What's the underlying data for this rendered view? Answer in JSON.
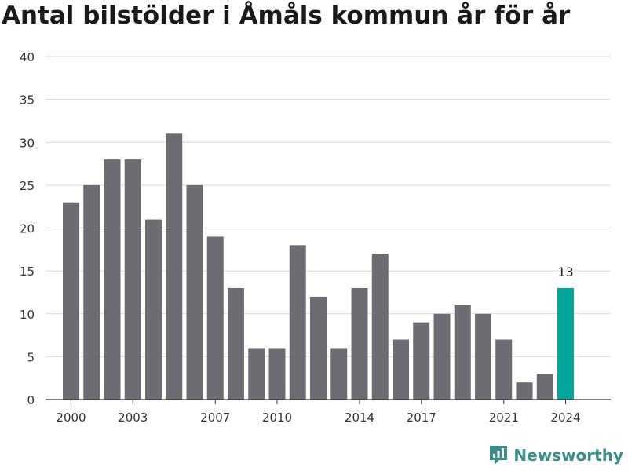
{
  "title": "Antal bilstölder i Åmåls kommun år för år",
  "brand": "Newsworthy",
  "colors": {
    "bar": "#6d6c72",
    "highlight": "#00a59b",
    "grid": "#d9d9d9",
    "text": "#333333",
    "brand": "#3a8f8c"
  },
  "chart_data": {
    "type": "bar",
    "title": "Antal bilstölder i Åmåls kommun år för år",
    "categories": [
      "2000",
      "2001",
      "2002",
      "2003",
      "2004",
      "2005",
      "2006",
      "2007",
      "2008",
      "2009",
      "2010",
      "2011",
      "2012",
      "2013",
      "2014",
      "2015",
      "2016",
      "2017",
      "2018",
      "2019",
      "2020",
      "2021",
      "2022",
      "2023",
      "2024"
    ],
    "values": [
      23,
      25,
      28,
      28,
      21,
      31,
      25,
      19,
      13,
      6,
      6,
      18,
      12,
      6,
      13,
      17,
      7,
      9,
      10,
      11,
      10,
      7,
      2,
      3,
      13
    ],
    "x_tick_labels": [
      "2000",
      "2003",
      "2007",
      "2010",
      "2014",
      "2017",
      "2021",
      "2024"
    ],
    "y_ticks": [
      0,
      5,
      10,
      15,
      20,
      25,
      30,
      35,
      40
    ],
    "ylim": [
      0,
      40
    ],
    "grid": true,
    "highlight": {
      "category": "2024",
      "label": "13"
    },
    "xlabel": "",
    "ylabel": ""
  }
}
